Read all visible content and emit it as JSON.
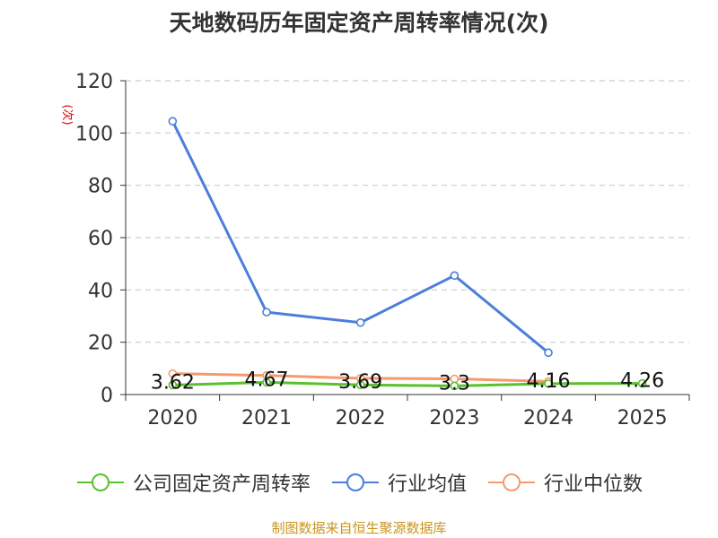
{
  "title": "天地数码历年固定资产周转率情况(次)",
  "source": "制图数据来自恒生聚源数据库",
  "chart_data": {
    "type": "line",
    "title": "天地数码历年固定资产周转率情况(次)",
    "ylabel": "(次)",
    "xlabel": "",
    "categories": [
      "2020",
      "2021",
      "2022",
      "2023",
      "2024",
      "2025"
    ],
    "ylim": [
      0,
      120
    ],
    "yticks": [
      0,
      20,
      40,
      60,
      80,
      100,
      120
    ],
    "grid": true,
    "legend_position": "bottom",
    "series": [
      {
        "name": "公司固定资产周转率",
        "color": "#5ac12e",
        "values": [
          3.62,
          4.67,
          3.69,
          3.3,
          4.16,
          4.26
        ],
        "labels": [
          "3.62",
          "4.67",
          "3.69",
          "3.3",
          "4.16",
          "4.26"
        ]
      },
      {
        "name": "行业均值",
        "color": "#4a7fda",
        "values": [
          104.5,
          31.5,
          27.5,
          45.5,
          16.0,
          null
        ]
      },
      {
        "name": "行业中位数",
        "color": "#f59a6b",
        "values": [
          8.0,
          7.3,
          6.2,
          6.0,
          5.0,
          null
        ]
      }
    ]
  }
}
